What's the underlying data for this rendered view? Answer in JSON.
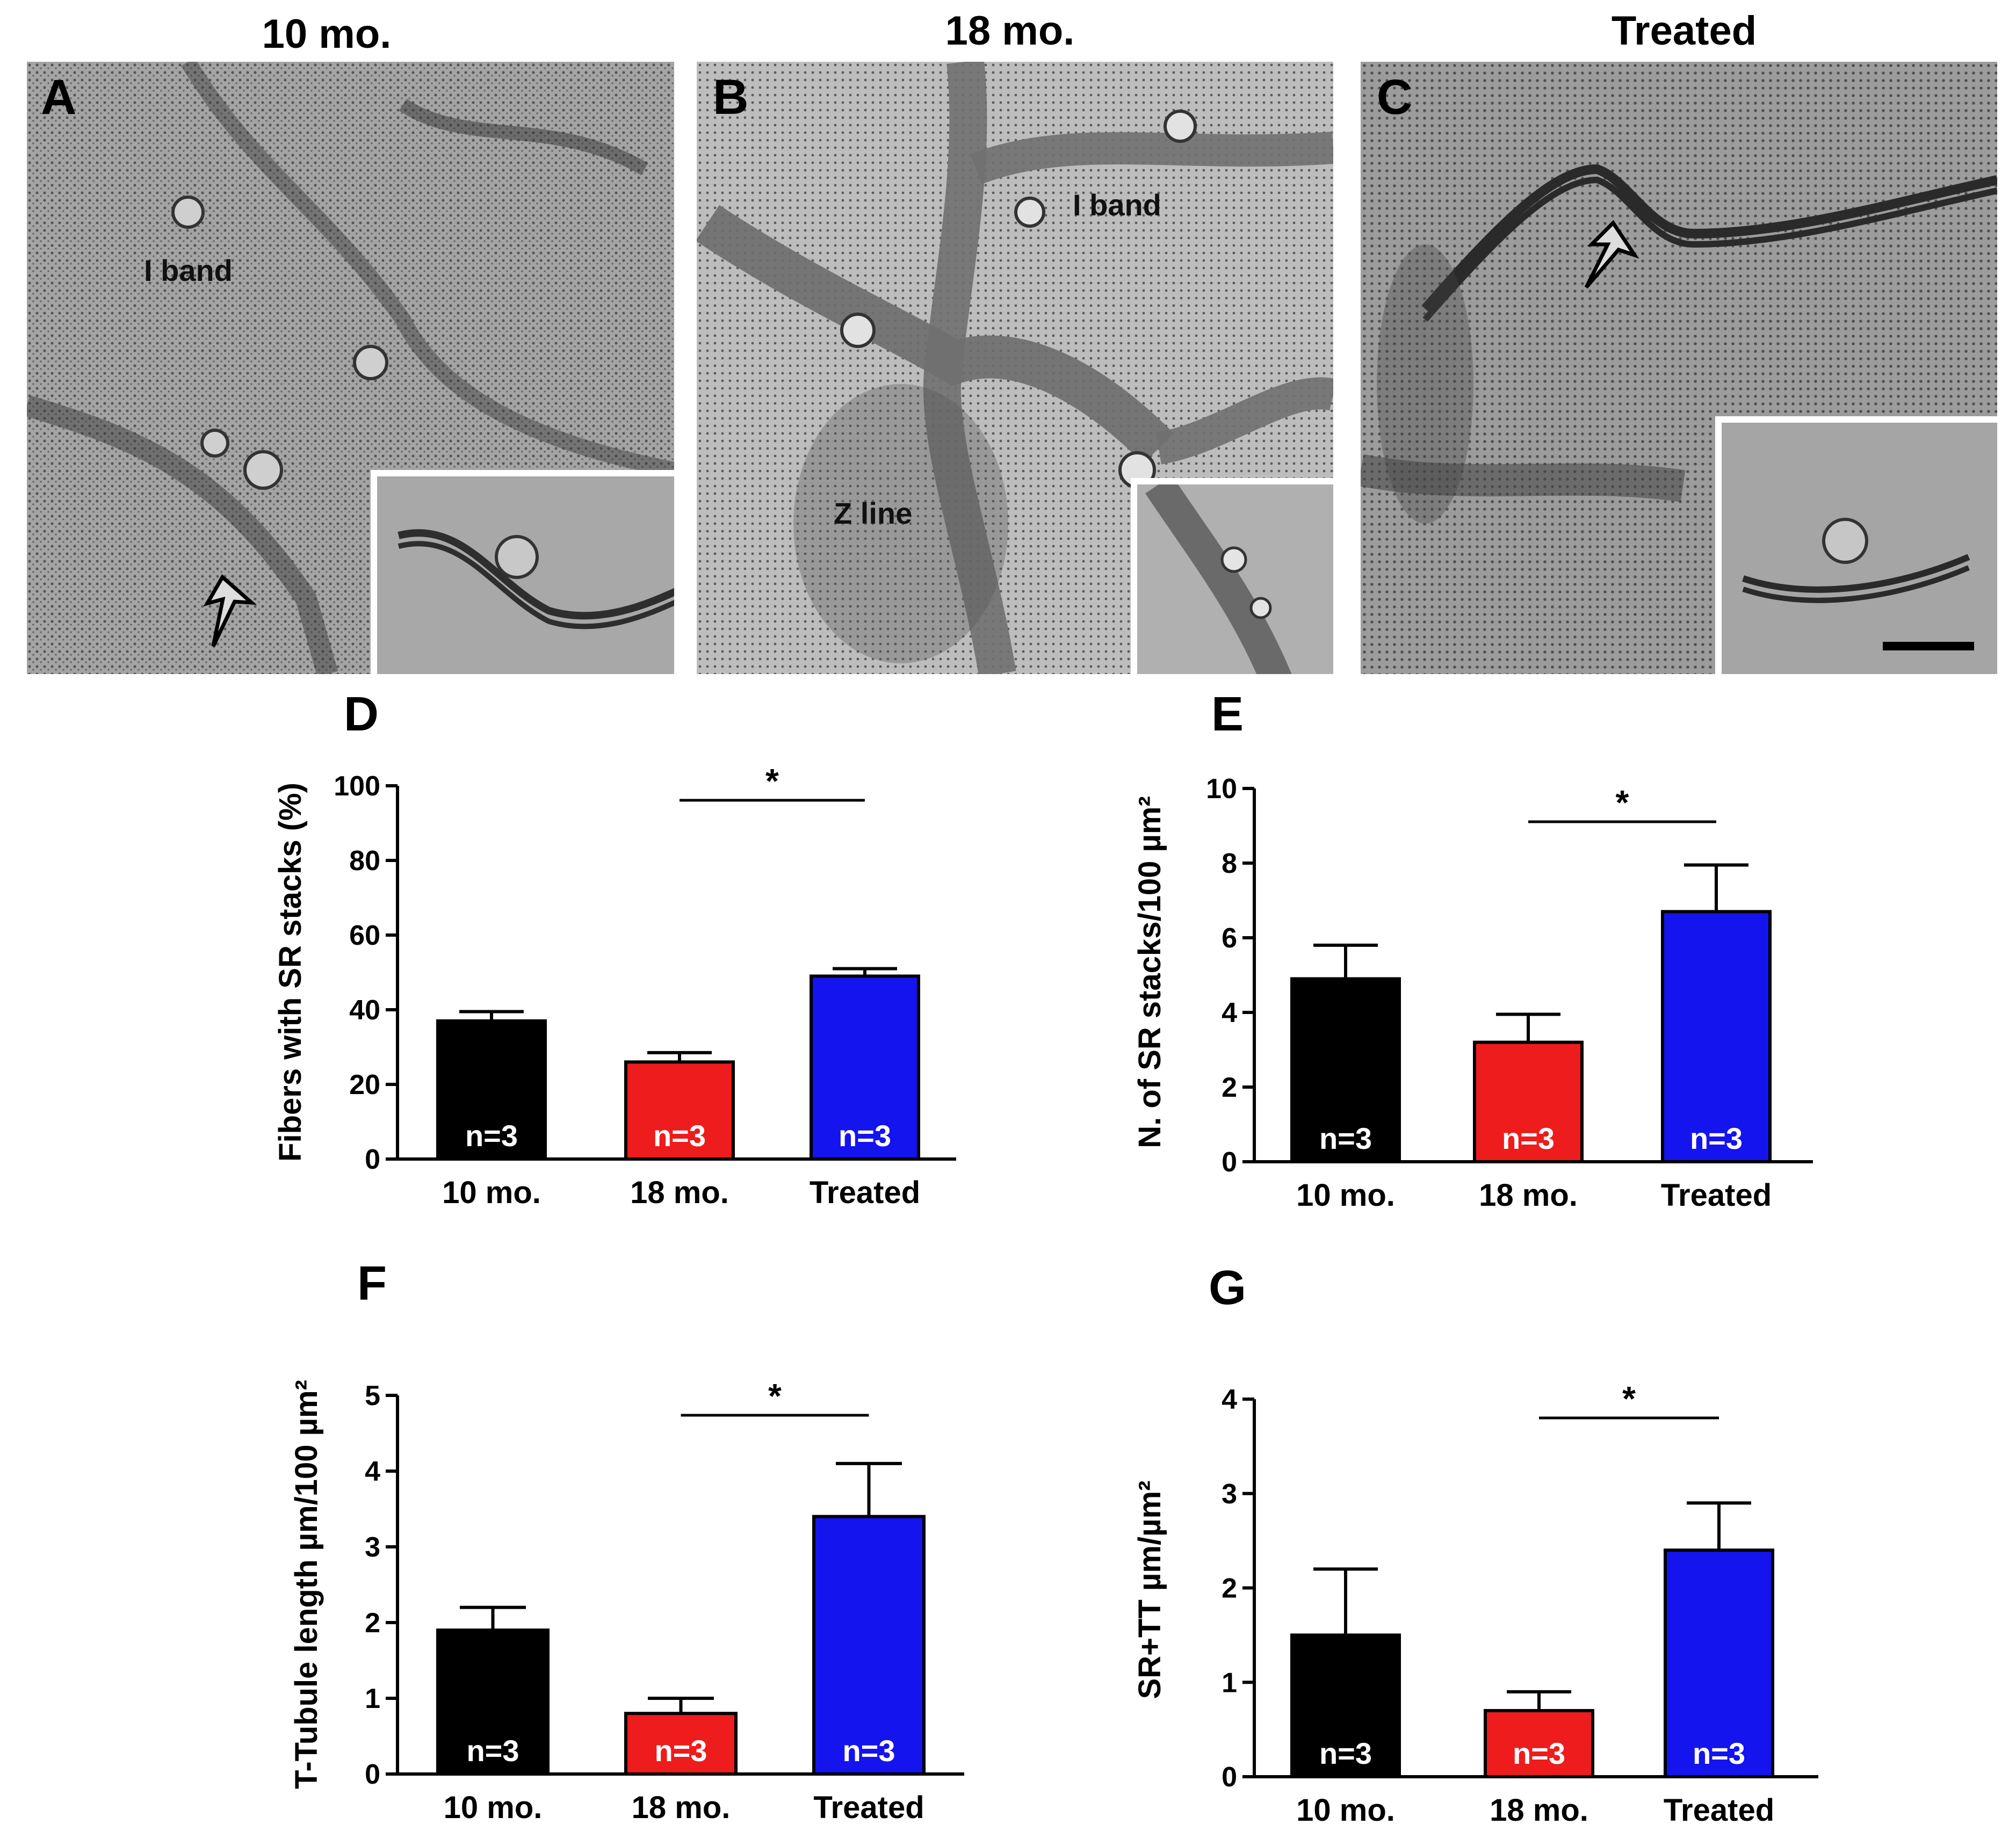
{
  "columns": [
    "10 mo.",
    "18 mo.",
    "Treated"
  ],
  "micrographs": [
    {
      "letter": "A",
      "labels": [
        "I band"
      ]
    },
    {
      "letter": "B",
      "labels": [
        "I band",
        "Z line"
      ]
    },
    {
      "letter": "C",
      "labels": []
    }
  ],
  "colors": {
    "10 mo.": "#000000",
    "18 mo.": "#ee1c1c",
    "Treated": "#1414ee"
  },
  "chart_data": [
    {
      "letter": "D",
      "type": "bar",
      "categories": [
        "10 mo.",
        "18 mo.",
        "Treated"
      ],
      "values": [
        37,
        26,
        49
      ],
      "errors": [
        2.5,
        2.5,
        2
      ],
      "n_labels": [
        "n=3",
        "n=3",
        "n=3"
      ],
      "ylabel": "Fibers with SR stacks (%)",
      "ylim": [
        0,
        100
      ],
      "yticks": [
        "0",
        "20",
        "40",
        "60",
        "80",
        "100"
      ],
      "significance": {
        "from": "18 mo.",
        "to": "Treated",
        "label": "*"
      }
    },
    {
      "letter": "E",
      "type": "bar",
      "categories": [
        "10 mo.",
        "18 mo.",
        "Treated"
      ],
      "values": [
        4.9,
        3.2,
        6.7
      ],
      "errors": [
        0.9,
        0.75,
        1.25
      ],
      "n_labels": [
        "n=3",
        "n=3",
        "n=3"
      ],
      "ylabel": "N. of SR stacks/100 µm²",
      "ylim": [
        0,
        10
      ],
      "yticks": [
        "0",
        "2",
        "4",
        "6",
        "8",
        "10"
      ],
      "significance": {
        "from": "18 mo.",
        "to": "Treated",
        "label": "*"
      }
    },
    {
      "letter": "F",
      "type": "bar",
      "categories": [
        "10 mo.",
        "18 mo.",
        "Treated"
      ],
      "values": [
        1.9,
        0.8,
        3.4
      ],
      "errors": [
        0.3,
        0.2,
        0.7
      ],
      "n_labels": [
        "n=3",
        "n=3",
        "n=3"
      ],
      "ylabel": "T-Tubule length µm/100 µm²",
      "ylim": [
        0,
        5
      ],
      "yticks": [
        "0",
        "1",
        "2",
        "3",
        "4",
        "5"
      ],
      "significance": {
        "from": "18 mo.",
        "to": "Treated",
        "label": "*"
      }
    },
    {
      "letter": "G",
      "type": "bar",
      "categories": [
        "10 mo.",
        "18 mo.",
        "Treated"
      ],
      "values": [
        1.5,
        0.7,
        2.4
      ],
      "errors": [
        0.7,
        0.2,
        0.5
      ],
      "n_labels": [
        "n=3",
        "n=3",
        "n=3"
      ],
      "ylabel": "SR+TT µm/µm²",
      "ylim": [
        0,
        4
      ],
      "yticks": [
        "0",
        "1",
        "2",
        "3",
        "4"
      ],
      "significance": {
        "from": "18 mo.",
        "to": "Treated",
        "label": "*"
      }
    }
  ]
}
